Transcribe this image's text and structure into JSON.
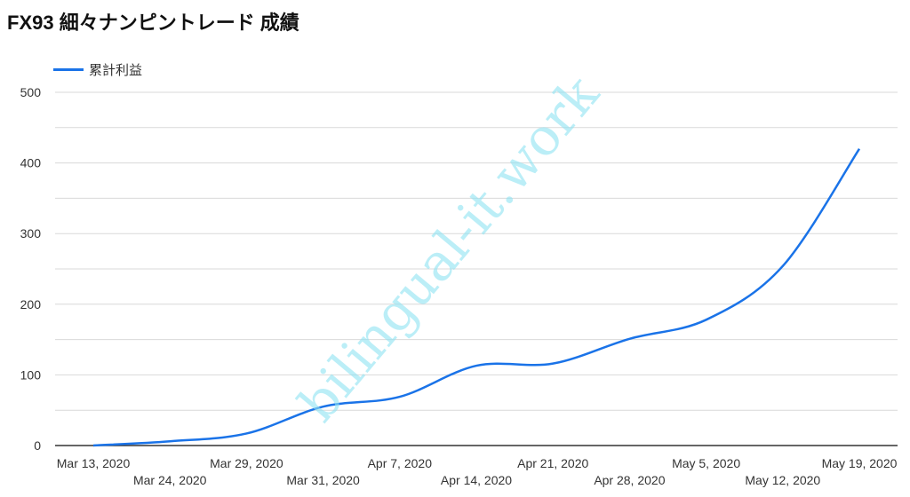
{
  "chart_data": {
    "type": "line",
    "title": "FX93 細々ナンピントレード 成績",
    "xlabel": "",
    "ylabel": "",
    "categories": [
      "Mar 13, 2020",
      "Mar 24, 2020",
      "Mar 29, 2020",
      "Mar 31, 2020",
      "Apr 7, 2020",
      "Apr 14, 2020",
      "Apr 21, 2020",
      "Apr 28, 2020",
      "May 5, 2020",
      "May 12, 2020",
      "May 19, 2020"
    ],
    "series": [
      {
        "name": "累計利益",
        "color": "#1a73e8",
        "values": [
          0,
          6,
          17,
          55,
          69,
          113,
          116,
          151,
          178,
          254,
          420
        ]
      }
    ],
    "ylim": [
      0,
      500
    ],
    "yticks": [
      0,
      100,
      200,
      300,
      400,
      500
    ],
    "grid": true,
    "legend": "top-left",
    "smooth": true
  },
  "watermark": "bilingual-it.work"
}
